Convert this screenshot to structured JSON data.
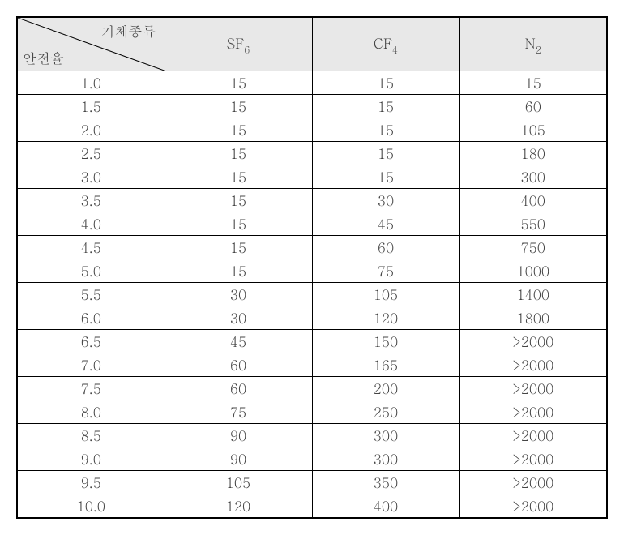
{
  "table": {
    "type": "table",
    "background_color": "#ffffff",
    "header_background": "#e8e8e8",
    "border_color": "#000000",
    "text_color": "#444444",
    "font_size": 17,
    "diagonal_header": {
      "top_right": "기체종류",
      "bottom_left": "안전율"
    },
    "columns": [
      {
        "label_main": "SF",
        "label_sub": "6"
      },
      {
        "label_main": "CF",
        "label_sub": "4"
      },
      {
        "label_main": "N",
        "label_sub": "2"
      }
    ],
    "rows": [
      {
        "factor": "1.0",
        "sf6": "15",
        "cf4": "15",
        "n2": "15"
      },
      {
        "factor": "1.5",
        "sf6": "15",
        "cf4": "15",
        "n2": "60"
      },
      {
        "factor": "2.0",
        "sf6": "15",
        "cf4": "15",
        "n2": "105"
      },
      {
        "factor": "2.5",
        "sf6": "15",
        "cf4": "15",
        "n2": "180"
      },
      {
        "factor": "3.0",
        "sf6": "15",
        "cf4": "15",
        "n2": "300"
      },
      {
        "factor": "3.5",
        "sf6": "15",
        "cf4": "30",
        "n2": "400"
      },
      {
        "factor": "4.0",
        "sf6": "15",
        "cf4": "45",
        "n2": "550"
      },
      {
        "factor": "4.5",
        "sf6": "15",
        "cf4": "60",
        "n2": "750"
      },
      {
        "factor": "5.0",
        "sf6": "15",
        "cf4": "75",
        "n2": "1000"
      },
      {
        "factor": "5.5",
        "sf6": "30",
        "cf4": "105",
        "n2": "1400"
      },
      {
        "factor": "6.0",
        "sf6": "30",
        "cf4": "120",
        "n2": "1800"
      },
      {
        "factor": "6.5",
        "sf6": "45",
        "cf4": "150",
        "n2": ">2000"
      },
      {
        "factor": "7.0",
        "sf6": "60",
        "cf4": "165",
        "n2": ">2000"
      },
      {
        "factor": "7.5",
        "sf6": "60",
        "cf4": "200",
        "n2": ">2000"
      },
      {
        "factor": "8.0",
        "sf6": "75",
        "cf4": "250",
        "n2": ">2000"
      },
      {
        "factor": "8.5",
        "sf6": "90",
        "cf4": "300",
        "n2": ">2000"
      },
      {
        "factor": "9.0",
        "sf6": "90",
        "cf4": "300",
        "n2": ">2000"
      },
      {
        "factor": "9.5",
        "sf6": "105",
        "cf4": "350",
        "n2": ">2000"
      },
      {
        "factor": "10.0",
        "sf6": "120",
        "cf4": "400",
        "n2": ">2000"
      }
    ]
  }
}
